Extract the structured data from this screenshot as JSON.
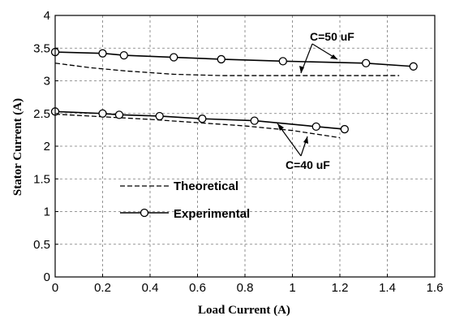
{
  "chart_data": {
    "type": "line",
    "xlabel": "Load Current (A)",
    "ylabel": "Stator Current (A)",
    "xlim": [
      0,
      1.6
    ],
    "ylim": [
      0,
      4
    ],
    "xticks": [
      0,
      0.2,
      0.4,
      0.6,
      0.8,
      1,
      1.2,
      1.4,
      1.6
    ],
    "xtick_labels": [
      "0",
      "0.2",
      "0.4",
      "0.6",
      "0.8",
      "1",
      "1.2",
      "1.4",
      "1.6"
    ],
    "yticks": [
      0,
      0.5,
      1,
      1.5,
      2,
      2.5,
      3,
      3.5,
      4
    ],
    "ytick_labels": [
      "0",
      "0.5",
      "1",
      "1.5",
      "2",
      "2.5",
      "3",
      "3.5",
      "4"
    ],
    "grid": true,
    "legend": {
      "placement": "lower-left",
      "entries": [
        {
          "label": "Theoretical",
          "style": "dashed"
        },
        {
          "label": "Experimental",
          "style": "solid-circle"
        }
      ]
    },
    "series": [
      {
        "style": "dashed",
        "group": "C=50 uF",
        "x": [
          0,
          0.15,
          0.3,
          0.5,
          0.7,
          0.9,
          1.1,
          1.3,
          1.45
        ],
        "y": [
          3.27,
          3.2,
          3.15,
          3.1,
          3.08,
          3.08,
          3.08,
          3.08,
          3.08
        ]
      },
      {
        "style": "solid-circle",
        "group": "C=50 uF",
        "x": [
          0,
          0.2,
          0.29,
          0.5,
          0.7,
          0.96,
          1.31,
          1.51
        ],
        "y": [
          3.44,
          3.42,
          3.39,
          3.36,
          3.33,
          3.3,
          3.27,
          3.22
        ]
      },
      {
        "style": "dashed",
        "group": "C=40 uF",
        "x": [
          0,
          0.2,
          0.4,
          0.6,
          0.8,
          1.0,
          1.2
        ],
        "y": [
          2.49,
          2.45,
          2.41,
          2.36,
          2.31,
          2.24,
          2.13
        ]
      },
      {
        "style": "solid-circle",
        "group": "C=40 uF",
        "x": [
          0,
          0.2,
          0.27,
          0.44,
          0.62,
          0.84,
          1.1,
          1.22
        ],
        "y": [
          2.53,
          2.5,
          2.48,
          2.46,
          2.42,
          2.39,
          2.3,
          2.26
        ]
      }
    ],
    "annotations": [
      {
        "text": "C=50 uF"
      },
      {
        "text": "C=40 uF"
      }
    ]
  }
}
